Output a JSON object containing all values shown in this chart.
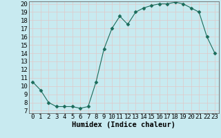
{
  "x": [
    0,
    1,
    2,
    3,
    4,
    5,
    6,
    7,
    8,
    9,
    10,
    11,
    12,
    13,
    14,
    15,
    16,
    17,
    18,
    19,
    20,
    21,
    22,
    23
  ],
  "y": [
    10.5,
    9.5,
    8.0,
    7.5,
    7.5,
    7.5,
    7.3,
    7.5,
    10.5,
    14.5,
    17.0,
    18.5,
    17.5,
    19.0,
    19.5,
    19.8,
    20.0,
    20.0,
    20.2,
    20.0,
    19.5,
    19.0,
    16.0,
    14.0
  ],
  "line_color": "#1a6b5a",
  "marker": "D",
  "marker_size": 2.5,
  "background_color": "#c8eaf0",
  "grid_color": "#e8f8fc",
  "xlabel": "Humidex (Indice chaleur)",
  "ylim_min": 7,
  "ylim_max": 20,
  "xlim_min": 0,
  "xlim_max": 23,
  "yticks": [
    7,
    8,
    9,
    10,
    11,
    12,
    13,
    14,
    15,
    16,
    17,
    18,
    19,
    20
  ],
  "xticks": [
    0,
    1,
    2,
    3,
    4,
    5,
    6,
    7,
    8,
    9,
    10,
    11,
    12,
    13,
    14,
    15,
    16,
    17,
    18,
    19,
    20,
    21,
    22,
    23
  ],
  "xlabel_fontsize": 7.5,
  "tick_fontsize": 6.5
}
